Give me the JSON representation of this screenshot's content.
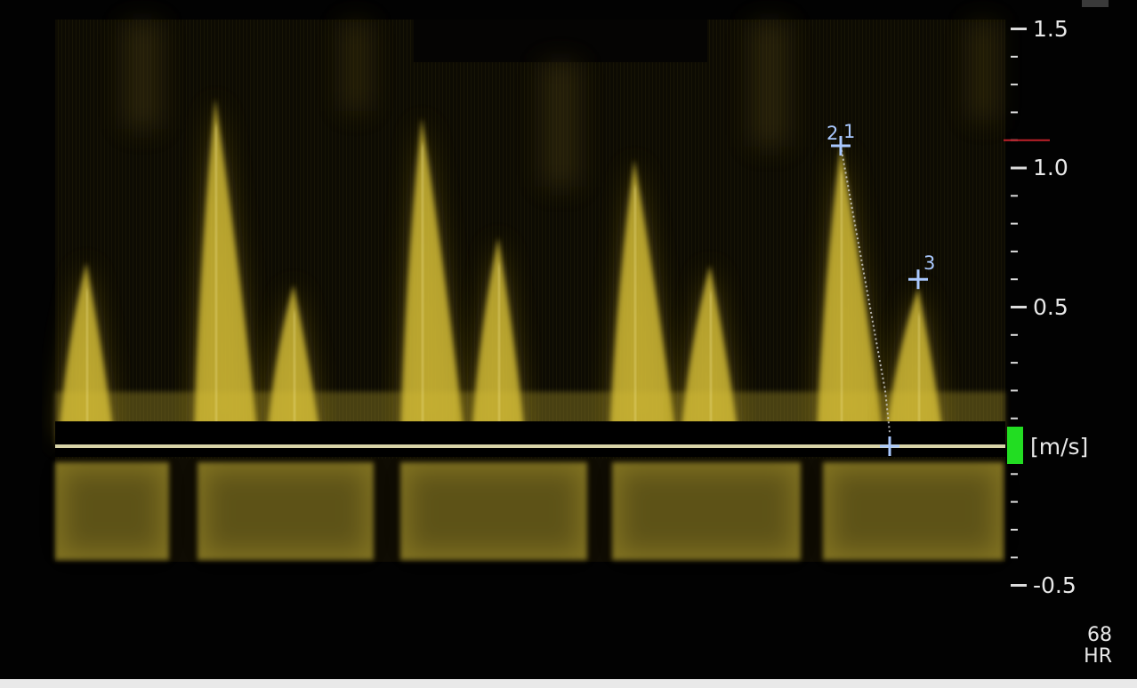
{
  "scale": {
    "unit": "[m/s]",
    "max": 1.5,
    "min": -0.5,
    "labels": [
      {
        "text": "1.5",
        "value": 1.5
      },
      {
        "text": "1.0",
        "value": 1.0
      },
      {
        "text": "0.5",
        "value": 0.5
      },
      {
        "text": "-0.5",
        "value": -0.5
      }
    ],
    "minor_step": 0.1,
    "reference_velocity": 1.1
  },
  "measurements": [
    {
      "label": "2",
      "velocity": 1.08
    },
    {
      "label": "1",
      "velocity": 1.08
    },
    {
      "label": "3",
      "velocity": 0.6
    },
    {
      "label": "",
      "velocity": 0.0
    }
  ],
  "vitals": {
    "hr_value": "68",
    "hr_label": "HR"
  },
  "colors": {
    "doppler": "#e0c83a",
    "baseline": "#d8d4a8",
    "marker": "#a9c8ff",
    "reference": "#c0202a",
    "indicator": "#22dd22"
  }
}
